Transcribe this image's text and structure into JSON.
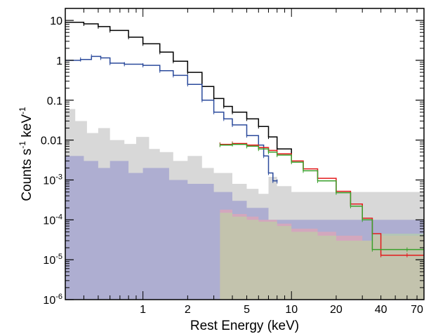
{
  "chart_data": {
    "type": "line",
    "xlabel": "Rest Energy (keV)",
    "ylabel_parts": [
      "Counts s",
      "-1",
      " keV",
      "-1"
    ],
    "x_scale": "log",
    "y_scale": "log",
    "xlim": [
      0.3,
      78
    ],
    "ylim": [
      1e-06,
      20
    ],
    "x_tick_labels": [
      {
        "value": 1,
        "label": "1"
      },
      {
        "value": 2,
        "label": "2"
      },
      {
        "value": 5,
        "label": "5"
      },
      {
        "value": 10,
        "label": "10"
      },
      {
        "value": 20,
        "label": "20"
      },
      {
        "value": 40,
        "label": "40"
      },
      {
        "value": 70,
        "label": "70"
      }
    ],
    "y_tick_labels": [
      {
        "value": 10,
        "label": "10"
      },
      {
        "value": 1,
        "label": "1"
      },
      {
        "value": 0.1,
        "label": "0.1"
      },
      {
        "value": 0.01,
        "label": "0.01"
      },
      {
        "value": 0.001,
        "base": "10",
        "exp": "-3"
      },
      {
        "value": 0.0001,
        "base": "10",
        "exp": "-4"
      },
      {
        "value": 1e-05,
        "base": "10",
        "exp": "-5"
      },
      {
        "value": 1e-06,
        "base": "10",
        "exp": "-6"
      }
    ],
    "series": [
      {
        "color": "#000000",
        "x": [
          0.3,
          0.4,
          0.5,
          0.6,
          0.8,
          1.0,
          1.3,
          1.6,
          2.0,
          2.5,
          3.0,
          3.5,
          4.0,
          5.0,
          6.0,
          7.0,
          8.0,
          10.0
        ],
        "y": [
          9.0,
          8.2,
          7.0,
          5.6,
          3.8,
          2.6,
          1.6,
          0.95,
          0.5,
          0.22,
          0.11,
          0.07,
          0.05,
          0.034,
          0.022,
          0.012,
          0.006,
          0.0038
        ]
      },
      {
        "color": "#2b4a9c",
        "x": [
          0.3,
          0.38,
          0.45,
          0.52,
          0.6,
          0.75,
          1.0,
          1.3,
          1.6,
          2.0,
          2.5,
          3.0,
          3.5,
          4.0,
          5.0,
          6.0,
          6.5,
          7.0,
          7.5,
          8.0
        ],
        "y": [
          1.0,
          1.05,
          1.25,
          1.15,
          0.85,
          0.8,
          0.75,
          0.55,
          0.42,
          0.25,
          0.1,
          0.05,
          0.034,
          0.024,
          0.013,
          0.0075,
          0.004,
          0.0015,
          0.00095,
          0.00092
        ]
      },
      {
        "color": "#e31a1c",
        "x": [
          3.3,
          4.0,
          5.0,
          6.0,
          7.0,
          8.0,
          10.0,
          12.0,
          15.0,
          20.0,
          25.0,
          30.0,
          35.0,
          40.0,
          60.0,
          78.0
        ],
        "y": [
          0.0078,
          0.0082,
          0.0075,
          0.0065,
          0.0055,
          0.0045,
          0.003,
          0.0019,
          0.0011,
          0.00052,
          0.00025,
          0.00011,
          4.5e-05,
          1.3e-05,
          1.3e-05,
          1.3e-05
        ]
      },
      {
        "color": "#3aa02c",
        "x": [
          3.3,
          4.0,
          5.0,
          6.0,
          7.0,
          8.0,
          10.0,
          12.0,
          15.0,
          20.0,
          25.0,
          30.0,
          35.0,
          60.0,
          78.0
        ],
        "y": [
          0.0075,
          0.0078,
          0.007,
          0.006,
          0.005,
          0.0042,
          0.0028,
          0.0017,
          0.00095,
          0.00048,
          0.00022,
          0.0001,
          1.8e-05,
          1.8e-05,
          1.8e-05
        ]
      }
    ],
    "background_spectra": [
      {
        "color": "#b8b8b8",
        "x": [
          0.3,
          0.35,
          0.42,
          0.5,
          0.6,
          0.75,
          0.9,
          1.1,
          1.3,
          1.6,
          2.0,
          2.5,
          3.0,
          4.0,
          5.0,
          6.0,
          7.0,
          8.0,
          10.0
        ],
        "y": [
          0.06,
          0.03,
          0.015,
          0.02,
          0.01,
          0.008,
          0.012,
          0.006,
          0.005,
          0.003,
          0.004,
          0.002,
          0.0015,
          0.0008,
          0.0006,
          0.00045,
          0.0012,
          0.0007,
          0.0005
        ]
      },
      {
        "color": "#8c8ccc",
        "x": [
          0.3,
          0.4,
          0.5,
          0.6,
          0.8,
          1.0,
          1.5,
          2.0,
          3.0,
          4.0,
          5.0,
          7.0,
          8.0
        ],
        "y": [
          0.004,
          0.003,
          0.002,
          0.003,
          0.0015,
          0.002,
          0.001,
          0.0008,
          0.0005,
          0.0003,
          0.0002,
          0.0001,
          0.0001
        ]
      },
      {
        "color": "#f2a2ad",
        "x": [
          3.3,
          4.0,
          5.0,
          6.0,
          8.0,
          10.0,
          15.0,
          20.0,
          30.0,
          35.0,
          78.0
        ],
        "y": [
          0.00018,
          0.00014,
          0.00012,
          0.0001,
          8e-05,
          6e-05,
          5e-05,
          4e-05,
          3e-05,
          4e-05,
          4e-05
        ]
      },
      {
        "color": "#b6dba0",
        "x": [
          3.3,
          4.0,
          5.0,
          6.0,
          8.0,
          10.0,
          15.0,
          20.0,
          30.0,
          35.0,
          78.0
        ],
        "y": [
          0.00015,
          0.00012,
          0.0001,
          9e-05,
          7e-05,
          5e-05,
          4e-05,
          3e-05,
          3e-05,
          4.5e-05,
          4.5e-05
        ]
      }
    ]
  }
}
